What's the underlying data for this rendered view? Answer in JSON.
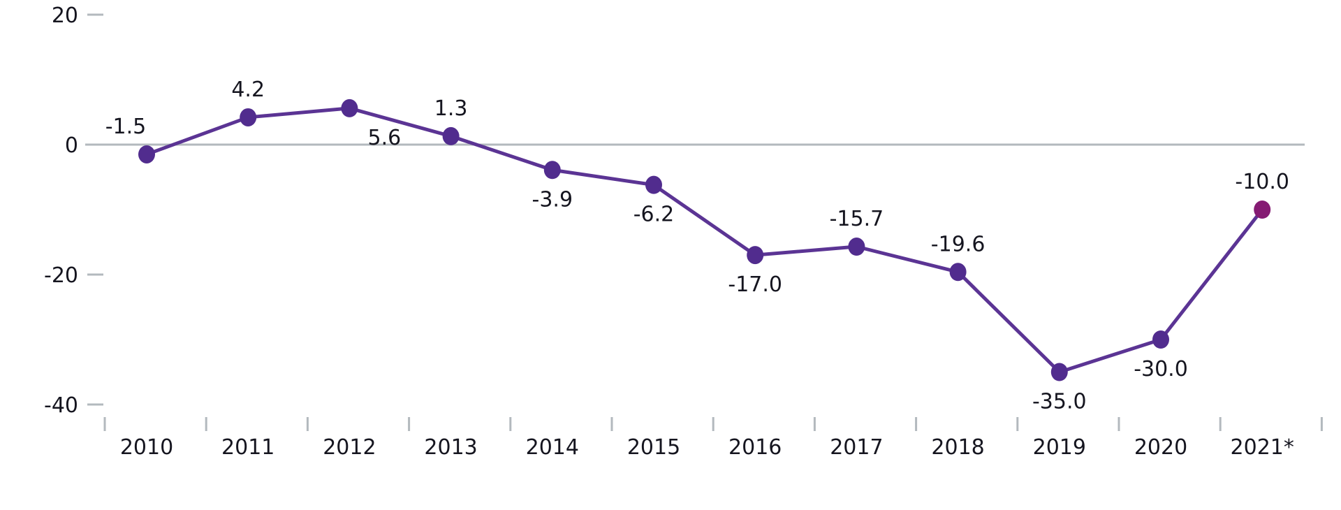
{
  "colors": {
    "background": "#ffffff",
    "line": "#5b3494",
    "point": "#512c8e",
    "highlight_point": "#851b73",
    "axis_gray": "#b3b9be",
    "text_dark": "#15151f"
  },
  "chart_data": {
    "type": "line",
    "title": "",
    "xlabel": "",
    "ylabel": "",
    "categories": [
      "2010",
      "2011",
      "2012",
      "2013",
      "2014",
      "2015",
      "2016",
      "2017",
      "2018",
      "2019",
      "2020",
      "2021*"
    ],
    "series": [
      {
        "name": "value",
        "values": [
          -1.5,
          4.2,
          5.6,
          1.3,
          -3.9,
          -6.2,
          -17.0,
          -15.7,
          -19.6,
          -35.0,
          -30.0,
          -10.0
        ]
      }
    ],
    "point_labels": [
      "-1.5",
      "4.2",
      "5.6",
      "1.3",
      "-3.9",
      "-6.2",
      "-17.0",
      "-15.7",
      "-19.6",
      "-35.0",
      "-30.0",
      "-10.0"
    ],
    "label_positions": [
      "above",
      "above",
      "below",
      "above",
      "below",
      "below",
      "below",
      "above",
      "above",
      "below",
      "below",
      "above"
    ],
    "label_dx": [
      -30,
      0,
      50,
      0,
      0,
      0,
      0,
      0,
      0,
      0,
      0,
      0
    ],
    "y_ticks": [
      20,
      0,
      -20,
      -40
    ],
    "ylim": [
      -45,
      22
    ],
    "zero_line": true,
    "grid": "off",
    "legend": "none",
    "highlight_last_point": true
  }
}
